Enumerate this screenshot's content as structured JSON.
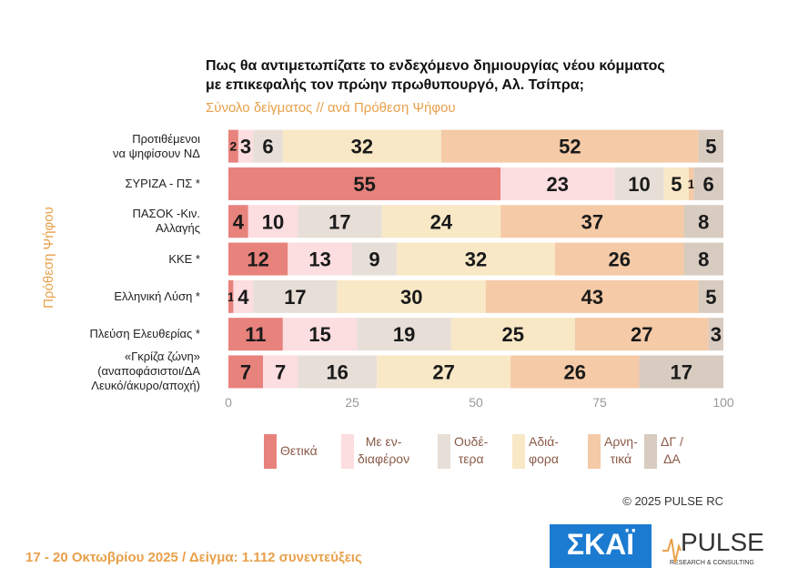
{
  "chart_data": {
    "type": "stacked-barh",
    "title": [
      "Πως θα αντιμετωπίζατε το ενδεχόμενο δημιουργίας νέου κόμματος",
      "με επικεφαλής τον πρώην πρωθυπουργό, Αλ. Τσίπρα;"
    ],
    "subtitle": "Σύνολο δείγματος // ανά Πρόθεση Ψήφου",
    "y_label": "Πρόθεση Ψήφου",
    "categories": [
      "Προτιθέμενοι\nνα ψηφίσουν ΝΔ",
      "ΣΥΡΙΖΑ - ΠΣ *",
      "ΠΑΣΟΚ -Κιν.\nΑλλαγής",
      "ΚΚΕ *",
      "Ελληνική Λύση *",
      "Πλεύση Ελευθερίας *",
      "«Γκρίζα ζώνη»\n(αναποφάσιστοι/ΔΑ\nΛευκό/άκυρο/αποχή)"
    ],
    "series": [
      {
        "name": "Θετικά",
        "color": "#e8827c",
        "values": [
          2,
          55,
          4,
          12,
          1,
          11,
          7
        ]
      },
      {
        "name": "Με εν-\nδιαφέρον",
        "color": "#fcdde0",
        "values": [
          3,
          23,
          10,
          13,
          4,
          15,
          7
        ]
      },
      {
        "name": "Ουδέ-\nτερα",
        "color": "#e7dfd7",
        "values": [
          6,
          10,
          17,
          9,
          17,
          19,
          16
        ]
      },
      {
        "name": "Αδιά-\nφορα",
        "color": "#f8e8c6",
        "values": [
          32,
          5,
          24,
          32,
          30,
          25,
          27
        ]
      },
      {
        "name": "Αρνη-\nτικά",
        "color": "#f5caa7",
        "values": [
          52,
          1,
          37,
          26,
          43,
          27,
          26
        ]
      },
      {
        "name": "ΔΓ /\nΔΑ",
        "color": "#d8cbbf",
        "values": [
          5,
          6,
          8,
          8,
          5,
          3,
          17
        ]
      }
    ],
    "xlim": [
      0,
      100
    ],
    "xticks": [
      0,
      25,
      50,
      75,
      100
    ]
  },
  "copyright": "©  2025  PULSE RC",
  "footer": "17 - 20 Οκτωβρίου 2025  /  Δείγμα:  1.112 συνεντεύξεις",
  "logos": {
    "skai": "ΣΚΑΪ",
    "pulse": "PULSE",
    "pulse_tagline": "RESEARCH & CONSULTING"
  }
}
